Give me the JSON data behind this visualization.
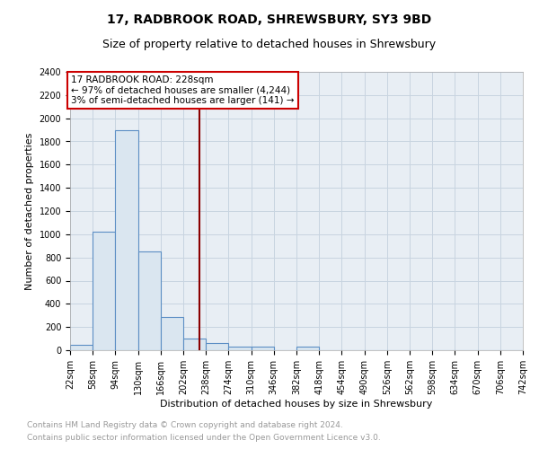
{
  "title": "17, RADBROOK ROAD, SHREWSBURY, SY3 9BD",
  "subtitle": "Size of property relative to detached houses in Shrewsbury",
  "xlabel": "Distribution of detached houses by size in Shrewsbury",
  "ylabel": "Number of detached properties",
  "bin_edges": [
    22,
    58,
    94,
    130,
    166,
    202,
    238,
    274,
    310,
    346,
    382,
    418,
    454,
    490,
    526,
    562,
    598,
    634,
    670,
    706,
    742
  ],
  "bar_heights": [
    50,
    1020,
    1900,
    850,
    290,
    100,
    60,
    30,
    30,
    0,
    30,
    0,
    0,
    0,
    0,
    0,
    0,
    0,
    0,
    0
  ],
  "bar_color": "#dae6f0",
  "bar_edge_color": "#5b8ec4",
  "property_size": 228,
  "property_line_color": "#8b0000",
  "annotation_text": "17 RADBROOK ROAD: 228sqm\n← 97% of detached houses are smaller (4,244)\n3% of semi-detached houses are larger (141) →",
  "annotation_box_color": "#cc0000",
  "ylim": [
    0,
    2400
  ],
  "yticks": [
    0,
    200,
    400,
    600,
    800,
    1000,
    1200,
    1400,
    1600,
    1800,
    2000,
    2200,
    2400
  ],
  "grid_color": "#c8d4e0",
  "bg_color": "#e8eef4",
  "footer_line1": "Contains HM Land Registry data © Crown copyright and database right 2024.",
  "footer_line2": "Contains public sector information licensed under the Open Government Licence v3.0.",
  "title_fontsize": 10,
  "subtitle_fontsize": 9,
  "axis_label_fontsize": 8,
  "tick_fontsize": 7,
  "footer_fontsize": 6.5,
  "annotation_fontsize": 7.5
}
